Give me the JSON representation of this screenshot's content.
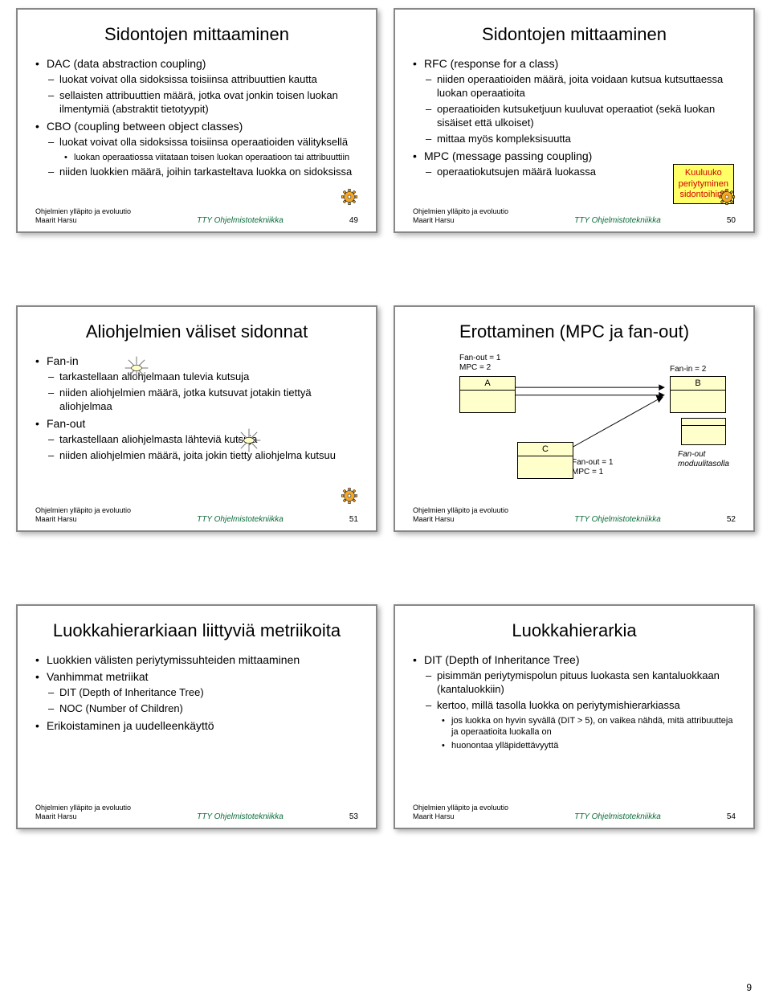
{
  "pageNumber": "9",
  "footer": {
    "leftLine1": "Ohjelmien ylläpito ja evoluutio",
    "leftLine2": "Maarit Harsu",
    "center": "TTY Ohjelmistotekniikka"
  },
  "gearColor": "#f5a623",
  "slides": [
    {
      "num": "49",
      "title": "Sidontojen mittaaminen",
      "bullets": [
        {
          "lvl": 1,
          "t": "DAC (data abstraction coupling)"
        },
        {
          "lvl": 2,
          "t": "luokat voivat olla sidoksissa toisiinsa attribuuttien kautta"
        },
        {
          "lvl": 2,
          "t": "sellaisten attribuuttien määrä, jotka ovat jonkin toisen luokan ilmentymiä (abstraktit tietotyypit)"
        },
        {
          "lvl": 1,
          "t": "CBO (coupling between object classes)"
        },
        {
          "lvl": 2,
          "t": "luokat voivat olla sidoksissa toisiinsa operaatioiden välityksellä"
        },
        {
          "lvl": 3,
          "t": "luokan operaatiossa viitataan toisen luokan operaatioon tai attribuuttiin"
        },
        {
          "lvl": 2,
          "t": "niiden luokkien määrä, joihin tarkasteltava luokka on sidoksissa"
        }
      ],
      "gear": true
    },
    {
      "num": "50",
      "title": "Sidontojen mittaaminen",
      "bullets": [
        {
          "lvl": 1,
          "t": "RFC (response for a class)"
        },
        {
          "lvl": 2,
          "t": "niiden operaatioiden määrä, joita voidaan kutsua kutsuttaessa luokan operaatioita"
        },
        {
          "lvl": 2,
          "t": "operaatioiden kutsuketjuun kuuluvat operaatiot (sekä luokan sisäiset että ulkoiset)"
        },
        {
          "lvl": 2,
          "t": "mittaa myös kompleksisuutta"
        },
        {
          "lvl": 1,
          "t": "MPC (message passing coupling)"
        },
        {
          "lvl": 2,
          "t": "operaatiokutsujen määrä luokassa"
        }
      ],
      "callout": "Kuuluuko\nperiytyminen\nsidontoihin?",
      "gear": true
    },
    {
      "num": "51",
      "title": "Aliohjelmien väliset sidonnat",
      "bullets": [
        {
          "lvl": 1,
          "t": "Fan-in"
        },
        {
          "lvl": 2,
          "t": "tarkastellaan aliohjelmaan tulevia kutsuja"
        },
        {
          "lvl": 2,
          "t": "niiden aliohjelmien määrä, jotka kutsuvat jotakin tiettyä aliohjelmaa"
        },
        {
          "lvl": 1,
          "t": "Fan-out"
        },
        {
          "lvl": 2,
          "t": "tarkastellaan aliohjelmasta lähteviä kutsuja"
        },
        {
          "lvl": 2,
          "t": "niiden aliohjelmien määrä, joita jokin tietty aliohjelma kutsuu"
        }
      ],
      "star": true,
      "gear": true
    },
    {
      "num": "52",
      "title": "Erottaminen (MPC ja fan-out)",
      "diagram": {
        "labels": {
          "fanoutA": "Fan-out = 1\nMPC = 2",
          "faninB": "Fan-in = 2",
          "fanoutC": "Fan-out = 1\nMPC = 1",
          "modside": "Fan-out\nmoduulitasolla",
          "A": "A",
          "B": "B",
          "C": "C"
        },
        "colors": {
          "boxFill": "#ffffcc",
          "line": "#000000"
        }
      }
    },
    {
      "num": "53",
      "title": "Luokkahierarkiaan liittyviä metriikoita",
      "bullets": [
        {
          "lvl": 1,
          "t": "Luokkien välisten periytymissuhteiden mittaaminen"
        },
        {
          "lvl": 1,
          "t": "Vanhimmat metriikat"
        },
        {
          "lvl": 2,
          "t": "DIT (Depth of Inheritance Tree)"
        },
        {
          "lvl": 2,
          "t": "NOC (Number of Children)"
        },
        {
          "lvl": 1,
          "t": "Erikoistaminen ja uudelleenkäyttö"
        }
      ]
    },
    {
      "num": "54",
      "title": "Luokkahierarkia",
      "bullets": [
        {
          "lvl": 1,
          "t": "DIT (Depth of Inheritance Tree)"
        },
        {
          "lvl": 2,
          "t": "pisimmän periytymispolun pituus luokasta sen kantaluokkaan (kantaluokkiin)"
        },
        {
          "lvl": 2,
          "t": "kertoo, millä tasolla luokka on periytymishierarkiassa"
        },
        {
          "lvl": 3,
          "t": "jos luokka on hyvin syvällä (DIT > 5), on vaikea nähdä, mitä attribuutteja ja operaatioita luokalla on"
        },
        {
          "lvl": 3,
          "t": "huonontaa ylläpidettävyyttä"
        }
      ]
    }
  ]
}
